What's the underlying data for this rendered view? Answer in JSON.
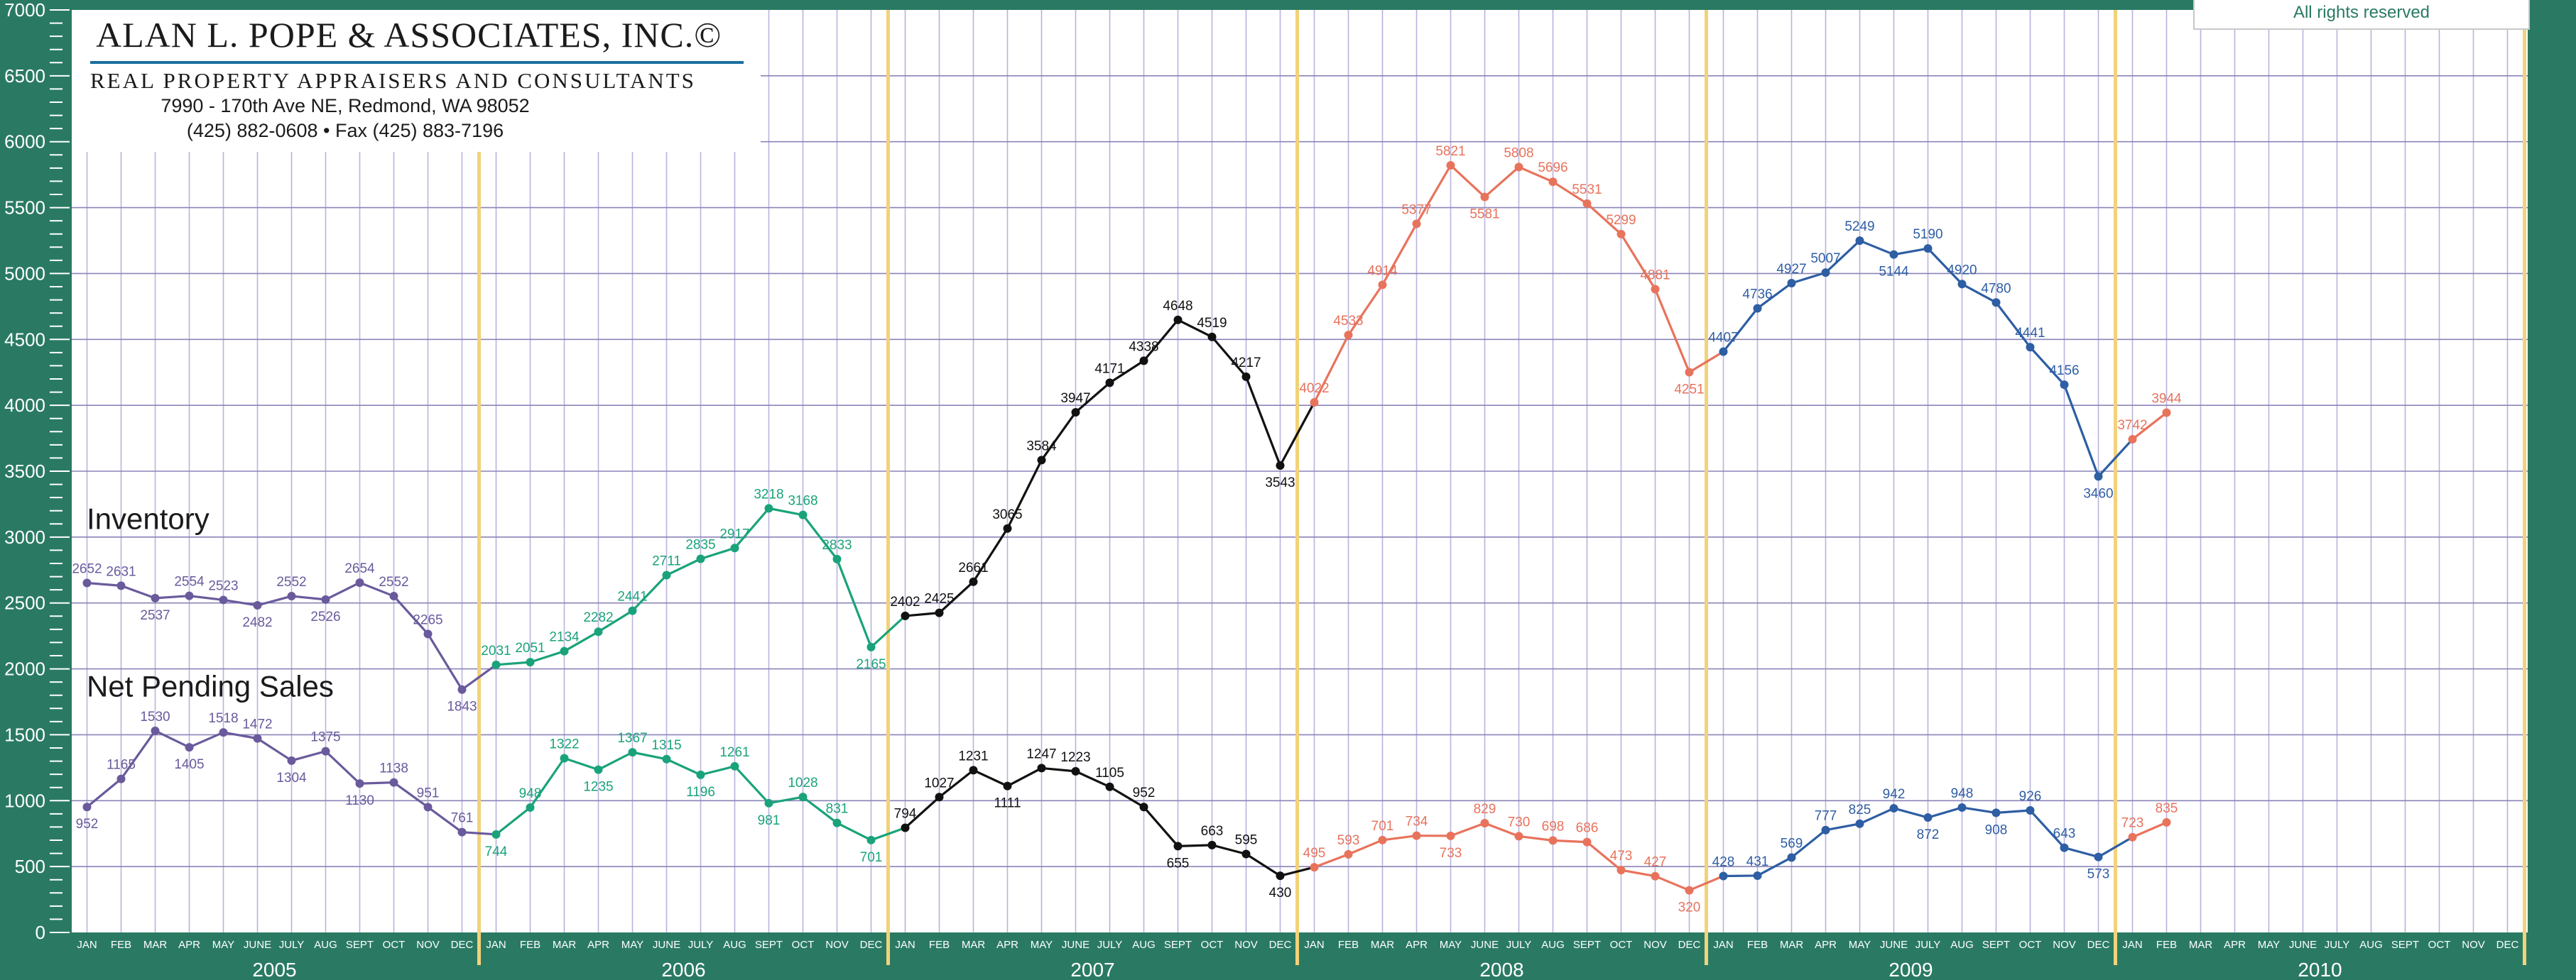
{
  "header": {
    "firm": "ALAN L. POPE & ASSOCIATES, INC.©",
    "tagline": "REAL PROPERTY APPRAISERS AND CONSULTANTS",
    "address": "7990 - 170th Ave NE, Redmond, WA 98052",
    "phone": "(425) 882-0608 • Fax (425) 883-7196"
  },
  "rights": "All rights reserved",
  "chart_data": {
    "type": "line",
    "title": "",
    "xlabel": "",
    "ylabel": "",
    "ylim": [
      0,
      7000
    ],
    "yticks": [
      0,
      500,
      1000,
      1500,
      2000,
      2500,
      3000,
      3500,
      4000,
      4500,
      5000,
      5500,
      6000,
      6500,
      7000
    ],
    "years": [
      "2005",
      "2006",
      "2007",
      "2008",
      "2009",
      "2010"
    ],
    "months": [
      "JAN",
      "FEB",
      "MAR",
      "APR",
      "MAY",
      "JUNE",
      "JULY",
      "AUG",
      "SEPT",
      "OCT",
      "NOV",
      "DEC"
    ],
    "grid": true,
    "series_labels": [
      "Inventory",
      "Net Pending Sales"
    ],
    "inventory_values": [
      2652,
      2631,
      2537,
      2554,
      2523,
      2482,
      2552,
      2526,
      2654,
      2552,
      2265,
      1843,
      2031,
      2051,
      2134,
      2282,
      2441,
      2711,
      2835,
      2917,
      3218,
      3168,
      2833,
      2165,
      2402,
      2425,
      2661,
      3065,
      3584,
      3947,
      4171,
      4338,
      4648,
      4519,
      4217,
      3543,
      4022,
      4533,
      4914,
      5377,
      5821,
      5581,
      5808,
      5696,
      5531,
      5299,
      4881,
      4251,
      4407,
      4736,
      4927,
      5007,
      5249,
      5144,
      5190,
      4920,
      4780,
      4441,
      4156,
      3460,
      3742,
      3944
    ],
    "pending_values": [
      952,
      1165,
      1530,
      1405,
      1518,
      1472,
      1304,
      1375,
      1130,
      1138,
      951,
      761,
      744,
      948,
      1322,
      1235,
      1367,
      1315,
      1196,
      1261,
      981,
      1028,
      831,
      701,
      794,
      1027,
      1231,
      1111,
      1247,
      1223,
      1105,
      952,
      655,
      663,
      595,
      430,
      495,
      593,
      701,
      734,
      733,
      829,
      730,
      698,
      686,
      473,
      427,
      320,
      428,
      431,
      569,
      777,
      825,
      942,
      872,
      948,
      908,
      926,
      643,
      573,
      723,
      835
    ],
    "year_colors": [
      "#6a5a9c",
      "#1aa37a",
      "#111111",
      "#e8735c",
      "#2e5ea3",
      "#e8735c"
    ]
  }
}
